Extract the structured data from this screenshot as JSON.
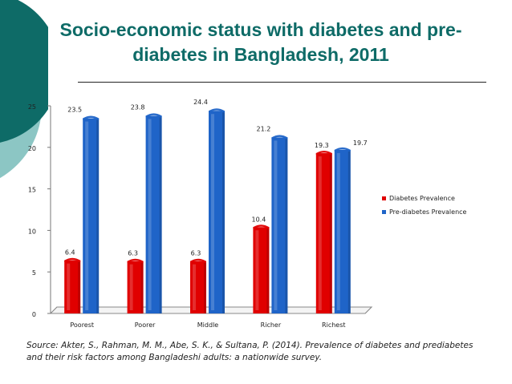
{
  "slide": {
    "title": "Socio-economic status with diabetes and pre-diabetes in Bangladesh, 2011",
    "source": "Source: Akter, S., Rahman, M. M., Abe, S. K., & Sultana, P. (2014). Prevalence of diabetes and prediabetes and their risk factors among Bangladeshi adults: a nationwide survey."
  },
  "colors": {
    "title": "#0e6b67",
    "ornament_dark": "#0e6b67",
    "ornament_light": "#8cc6c4",
    "diabetes": "#e00000",
    "prediabetes": "#1f64c8"
  },
  "chart_data": {
    "type": "bar",
    "categories": [
      "Poorest",
      "Poorer",
      "Middle",
      "Richer",
      "Richest"
    ],
    "series": [
      {
        "name": "Diabetes Prevalence",
        "color": "#e00000",
        "values": [
          6.4,
          6.3,
          6.3,
          10.4,
          19.3
        ],
        "labels": [
          "6.4",
          "6.3",
          "6.3",
          "10.4",
          "19.3"
        ]
      },
      {
        "name": "Pre-diabetes Prevalence",
        "color": "#1f64c8",
        "values": [
          23.5,
          23.8,
          24.4,
          21.2,
          19.7
        ],
        "labels": [
          "23.5",
          "23.8",
          "24.4",
          "21.2",
          "19.7"
        ]
      }
    ],
    "y_ticks": [
      "0",
      "5",
      "10",
      "15",
      "20",
      "25"
    ],
    "ylim": [
      0,
      25
    ],
    "legend": "right",
    "grid": false,
    "xlabel": "",
    "ylabel": ""
  }
}
